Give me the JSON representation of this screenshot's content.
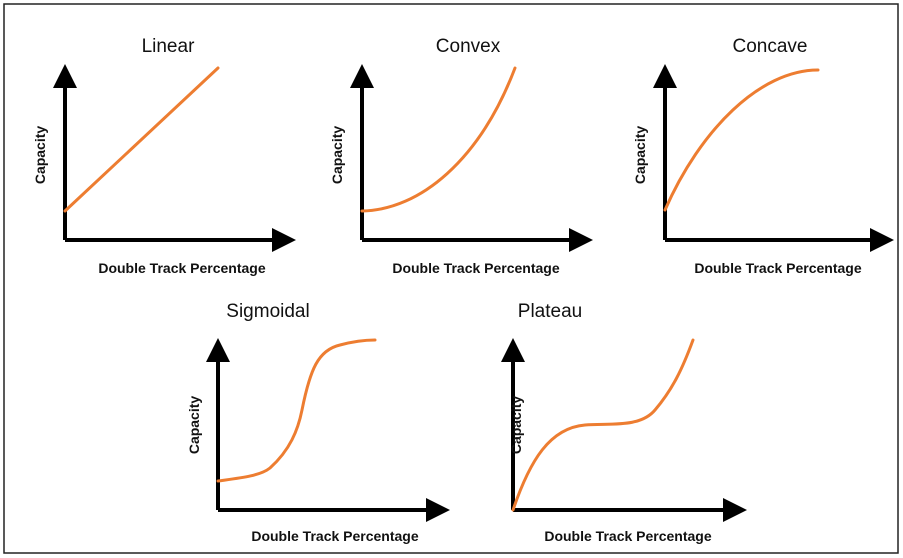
{
  "panels": [
    {
      "title": "Linear",
      "x_label": "Double Track Percentage",
      "y_label": "Capacity"
    },
    {
      "title": "Convex",
      "x_label": "Double Track Percentage",
      "y_label": "Capacity"
    },
    {
      "title": "Concave",
      "x_label": "Double Track Percentage",
      "y_label": "Capacity"
    },
    {
      "title": "Sigmoidal",
      "x_label": "Double Track Percentage",
      "y_label": "Capacity"
    },
    {
      "title": "Plateau",
      "x_label": "Double Track Percentage",
      "y_label": "Capacity"
    }
  ]
}
